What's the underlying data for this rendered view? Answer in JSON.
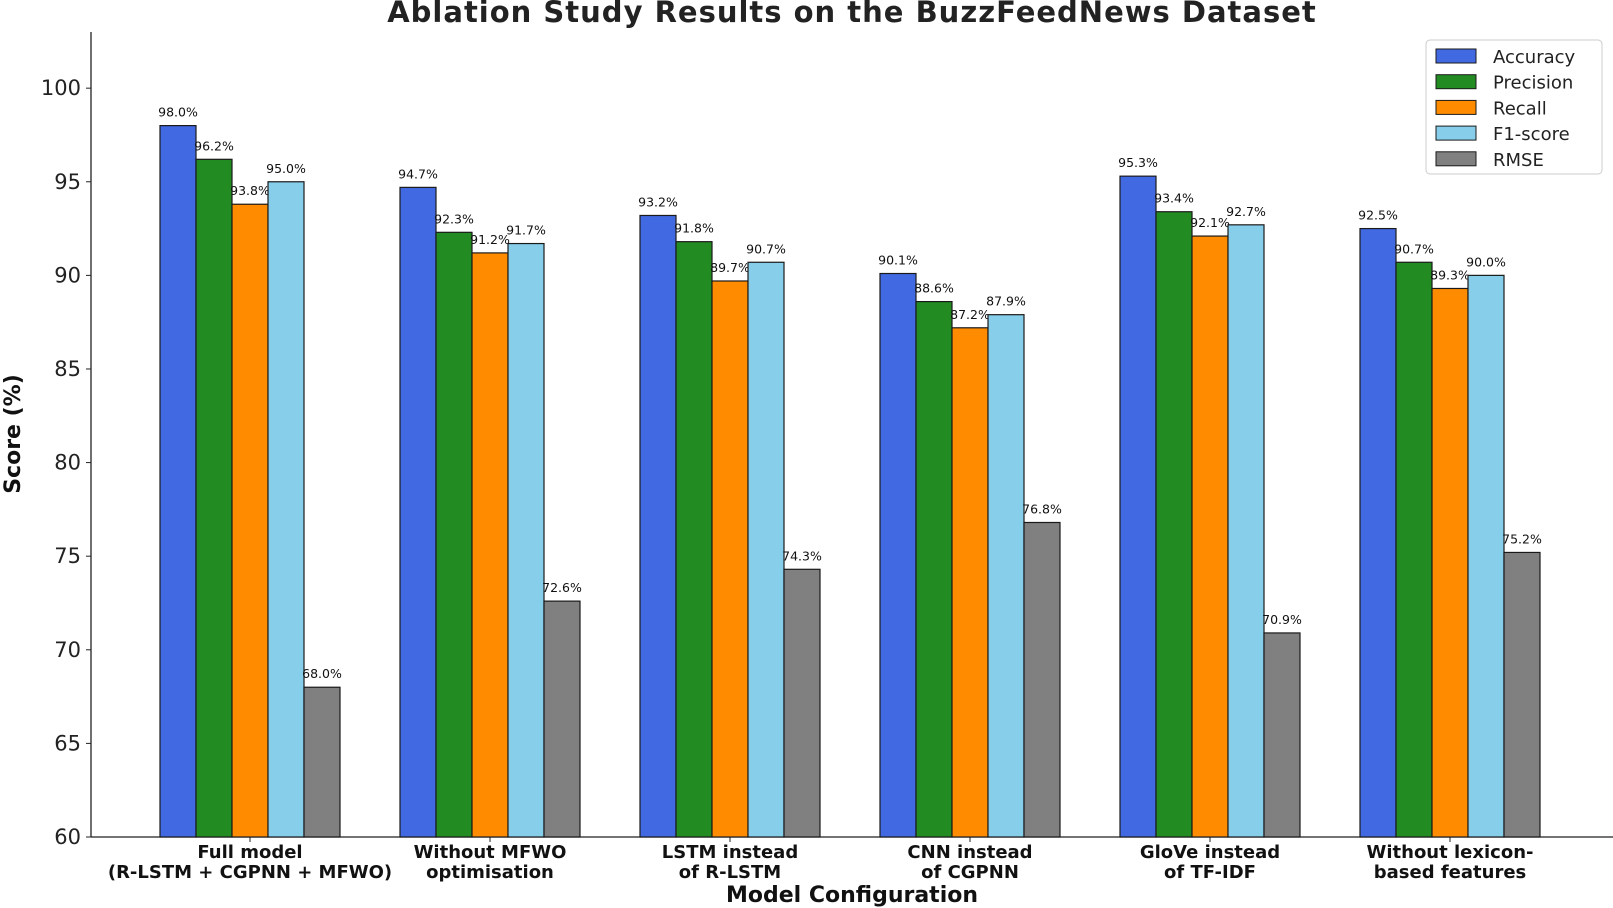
{
  "chart_data": {
    "type": "bar",
    "title": "Ablation Study Results on the BuzzFeedNews Dataset",
    "xlabel": "Model Configuration",
    "ylabel": "Score (%)",
    "ylim": [
      60,
      103
    ],
    "yticks": [
      60,
      65,
      70,
      75,
      80,
      85,
      90,
      95,
      100
    ],
    "grid": false,
    "legend_position": "top-right",
    "categories": [
      [
        "Full model",
        "(R-LSTM + CGPNN + MFWO)"
      ],
      [
        "Without MFWO",
        "optimisation"
      ],
      [
        "LSTM instead",
        "of R-LSTM"
      ],
      [
        "CNN instead",
        "of CGPNN"
      ],
      [
        "GloVe instead",
        "of TF-IDF"
      ],
      [
        "Without lexicon-",
        "based features"
      ]
    ],
    "series": [
      {
        "name": "Accuracy",
        "color": "#4169e1",
        "values": [
          98.0,
          94.7,
          93.2,
          90.1,
          95.3,
          92.5
        ],
        "labels": [
          "98.0%",
          "94.7%",
          "93.2%",
          "90.1%",
          "95.3%",
          "92.5%"
        ]
      },
      {
        "name": "Precision",
        "color": "#228b22",
        "values": [
          96.2,
          92.3,
          91.8,
          88.6,
          93.4,
          90.7
        ],
        "labels": [
          "96.2%",
          "92.3%",
          "91.8%",
          "88.6%",
          "93.4%",
          "90.7%"
        ]
      },
      {
        "name": "Recall",
        "color": "#ff8c00",
        "values": [
          93.8,
          91.2,
          89.7,
          87.2,
          92.1,
          89.3
        ],
        "labels": [
          "93.8%",
          "91.2%",
          "89.7%",
          "87.2%",
          "92.1%",
          "89.3%"
        ]
      },
      {
        "name": "F1-score",
        "color": "#87ceeb",
        "values": [
          95.0,
          91.7,
          90.7,
          87.9,
          92.7,
          90.0
        ],
        "labels": [
          "95.0%",
          "91.7%",
          "90.7%",
          "87.9%",
          "92.7%",
          "90.0%"
        ]
      },
      {
        "name": "RMSE",
        "color": "#808080",
        "values": [
          68.0,
          72.6,
          74.3,
          76.8,
          70.9,
          75.2
        ],
        "labels": [
          "68.0%",
          "72.6%",
          "74.3%",
          "76.8%",
          "70.9%",
          "75.2%"
        ]
      }
    ]
  }
}
